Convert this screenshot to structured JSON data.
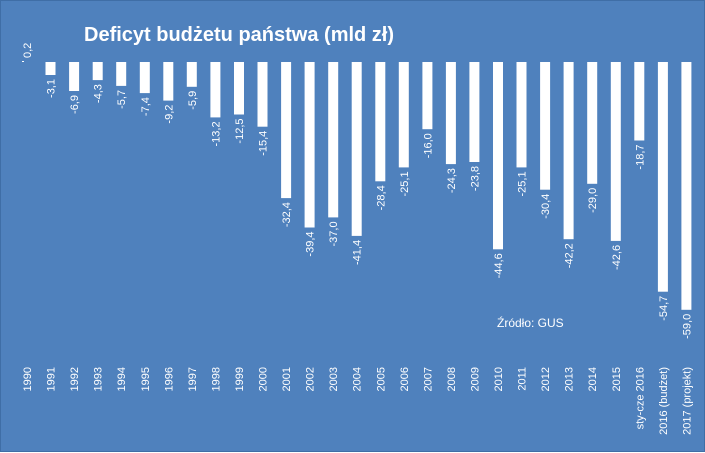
{
  "chart_data": {
    "type": "bar",
    "title": "Deficyt budżetu państwa (mld zł)",
    "source_note": "Źródło: GUS",
    "categories": [
      "1990",
      "1991",
      "1992",
      "1993",
      "1994",
      "1995",
      "1996",
      "1997",
      "1998",
      "1999",
      "2000",
      "2001",
      "2002",
      "2003",
      "2004",
      "2005",
      "2006",
      "2007",
      "2008",
      "2009",
      "2010",
      "2011",
      "2012",
      "2013",
      "2014",
      "2015",
      "sty-cze 2016",
      "2016 (budżet)",
      "2017 (projekt)"
    ],
    "values": [
      0.2,
      -3.1,
      -6.9,
      -4.3,
      -5.7,
      -7.4,
      -9.2,
      -5.9,
      -13.2,
      -12.5,
      -15.4,
      -32.4,
      -39.4,
      -37.0,
      -41.4,
      -28.4,
      -25.1,
      -16.0,
      -24.3,
      -23.8,
      -44.6,
      -25.1,
      -30.4,
      -42.2,
      -29.0,
      -42.6,
      -18.7,
      -54.7,
      -59.0
    ],
    "value_labels": [
      "0,2",
      "-3,1",
      "-6,9",
      "-4,3",
      "-5,7",
      "-7,4",
      "-9,2",
      "-5,9",
      "-13,2",
      "-12,5",
      "-15,4",
      "-32,4",
      "-39,4",
      "-37,0",
      "-41,4",
      "-28,4",
      "-25,1",
      "-16,0",
      "-24,3",
      "-23,8",
      "-44,6",
      "-25,1",
      "-30,4",
      "-42,2",
      "-29,0",
      "-42,6",
      "-18,7",
      "-54,7",
      "-59,0"
    ],
    "ylim": [
      -60,
      1
    ],
    "grid": false,
    "legend": "none",
    "colors": {
      "background": "#4f81bd",
      "bar": "#ffffff",
      "text": "#ffffff"
    }
  }
}
